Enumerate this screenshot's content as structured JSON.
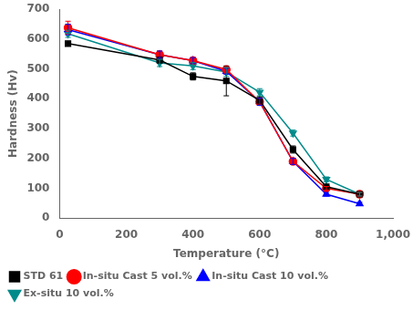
{
  "chart_data": {
    "type": "line",
    "xlabel": "Temperature (°C)",
    "ylabel": "Hardness (Hv)",
    "x": [
      25,
      300,
      400,
      500,
      600,
      700,
      800,
      900
    ],
    "series": [
      {
        "name": "STD 61",
        "color": "#000000",
        "marker": "square",
        "values": [
          585,
          530,
          475,
          460,
          395,
          230,
          105,
          80
        ],
        "yerr": [
          8,
          10,
          12,
          50,
          12,
          12,
          8,
          6
        ]
      },
      {
        "name": "In-situ Cast 5 vol.%",
        "color": "#ff0000",
        "marker": "circle",
        "values": [
          638,
          548,
          528,
          498,
          390,
          190,
          100,
          80
        ],
        "yerr": [
          22,
          12,
          10,
          10,
          12,
          10,
          6,
          6
        ]
      },
      {
        "name": "In-situ Cast 10 vol.%",
        "color": "#0000ff",
        "marker": "triangle_up",
        "values": [
          632,
          548,
          528,
          492,
          390,
          190,
          80,
          48
        ],
        "yerr": [
          18,
          12,
          10,
          10,
          12,
          10,
          6,
          5
        ]
      },
      {
        "name": "Ex-situ 10 vol.%",
        "color": "#008b8b",
        "marker": "triangle_down",
        "values": [
          618,
          520,
          510,
          490,
          422,
          285,
          130,
          80
        ],
        "yerr": [
          12,
          12,
          12,
          15,
          12,
          10,
          8,
          6
        ]
      }
    ],
    "xlim": [
      0,
      1000
    ],
    "ylim": [
      0,
      700
    ],
    "xticks": [
      0,
      200,
      400,
      600,
      800,
      1000
    ],
    "yticks": [
      0,
      100,
      200,
      300,
      400,
      500,
      600,
      700
    ],
    "grid": false,
    "legend": "lower left"
  }
}
